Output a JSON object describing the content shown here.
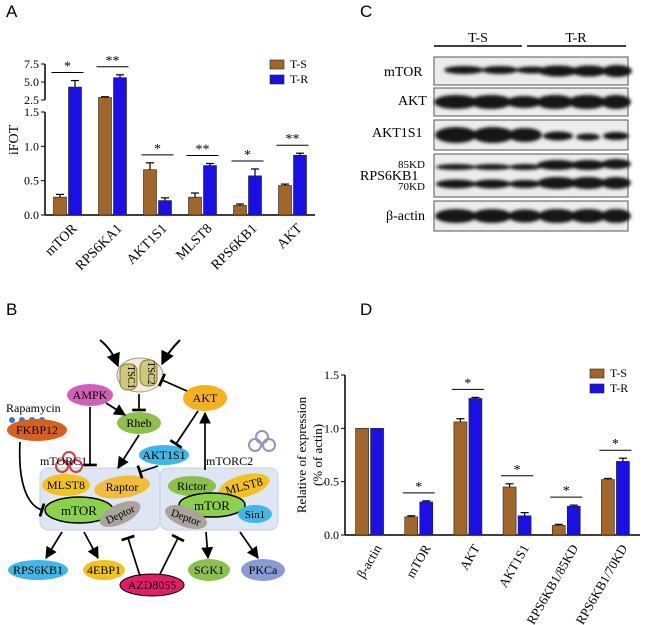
{
  "panels": {
    "A": "A",
    "B": "B",
    "C": "C",
    "D": "D"
  },
  "colors": {
    "ts": "#a0662a",
    "tr": "#1a10e6",
    "tsc_fill": "#cfc77a",
    "ampk": "#d45fb7",
    "rheb": "#8cc04b",
    "fkbp12": "#d8601d",
    "akt": "#f4b21f",
    "akt1s1": "#41b7e6",
    "mlst8": "#f2c31d",
    "mtor": "#8cd14a",
    "raptor": "#f2bc3a",
    "deptor": "#aaa49c",
    "rictor": "#8cc04b",
    "sin1": "#41b7e6",
    "rps6kb1": "#41b7e6",
    "4ebp1": "#f2c31d",
    "azd8055": "#e21c66",
    "sgk1": "#8cc04b",
    "pkca": "#8a9ad4",
    "complex_bg": "#dde6f2"
  },
  "chart_data": [
    {
      "panel": "A",
      "type": "bar",
      "ylabel": "iFOT",
      "categories": [
        "mTOR",
        "RPS6KA1",
        "AKT1S1",
        "MLST8",
        "RPS6KB1",
        "AKT"
      ],
      "series": [
        {
          "name": "T-S",
          "values": [
            0.26,
            2.85,
            0.66,
            0.26,
            0.14,
            0.43
          ],
          "errors": [
            0.04,
            0.1,
            0.1,
            0.06,
            0.02,
            0.02
          ]
        },
        {
          "name": "T-R",
          "values": [
            4.3,
            5.6,
            0.21,
            0.72,
            0.57,
            0.87
          ],
          "errors": [
            0.9,
            0.4,
            0.04,
            0.03,
            0.1,
            0.03
          ]
        }
      ],
      "yticks_lower": [
        "0.0",
        "0.5",
        "1.0",
        "1.5"
      ],
      "yticks_upper": [
        "2.5",
        "5.0",
        "7.5"
      ],
      "ylim_lower": [
        0,
        1.5
      ],
      "ylim_upper": [
        2.5,
        7.5
      ],
      "significance": [
        "*",
        "**",
        "*",
        "**",
        "*",
        "**"
      ],
      "legend": "top-right"
    },
    {
      "panel": "D",
      "type": "bar",
      "ylabel": "Relative of expression",
      "ylabel2": "(% of actin)",
      "categories": [
        "β-actin",
        "mTOR",
        "AKT",
        "AKT1S1",
        "RPS6KB1/85KD",
        "RPS6KB1/70KD"
      ],
      "series": [
        {
          "name": "T-S",
          "values": [
            1.0,
            0.17,
            1.06,
            0.45,
            0.09,
            0.52
          ],
          "errors": [
            0,
            0.01,
            0.03,
            0.03,
            0.01,
            0.01
          ]
        },
        {
          "name": "T-R",
          "values": [
            1.0,
            0.31,
            1.28,
            0.18,
            0.27,
            0.69
          ],
          "errors": [
            0,
            0.01,
            0.01,
            0.03,
            0.01,
            0.03
          ]
        }
      ],
      "yticks": [
        "0.0",
        "0.5",
        "1.0",
        "1.5"
      ],
      "ylim": [
        0,
        1.5
      ],
      "significance": [
        "",
        "*",
        "*",
        "*",
        "*",
        "*"
      ],
      "legend": "top-right"
    }
  ],
  "western_blot": {
    "groups": [
      "T-S",
      "T-R"
    ],
    "rows": [
      "mTOR",
      "AKT",
      "AKT1S1",
      "RPS6KB1",
      "β-actin"
    ],
    "markers": [
      "85KD",
      "70KD"
    ]
  },
  "pathway": {
    "tsc1": "TSC1",
    "tsc2": "TSC2",
    "ampk": "AMPK",
    "rapamycin": "Rapamycin",
    "fkbp12": "FKBP12",
    "rheb": "Rheb",
    "akt": "AKT",
    "akt1s1": "AKT1S1",
    "mtorc1": "mTORC1",
    "mtorc2": "mTORC2",
    "mlst8": "MLST8",
    "raptor": "Raptor",
    "mtor": "mTOR",
    "deptor": "Deptor",
    "rictor": "Rictor",
    "sin1": "Sin1",
    "rps6kb1": "RPS6KB1",
    "4ebp1": "4EBP1",
    "azd8055": "AZD8055",
    "sgk1": "SGK1",
    "pkca": "PKCa"
  }
}
